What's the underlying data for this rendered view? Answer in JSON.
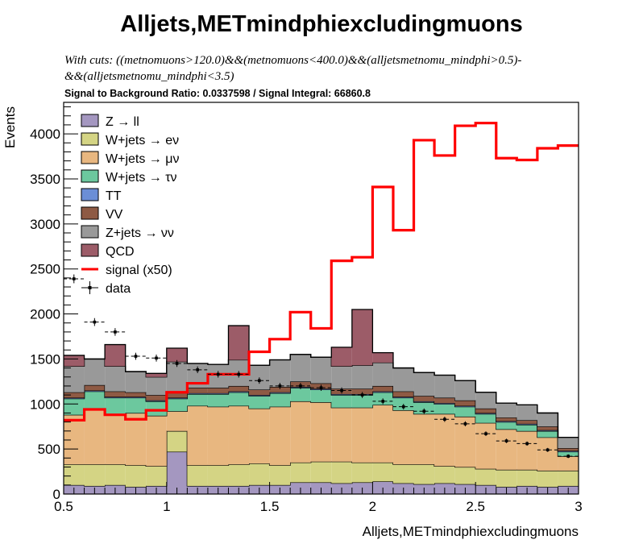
{
  "chart_data": {
    "type": "bar",
    "title": "Alljets,METmindphiexcludingmuons",
    "cuts_line1": "With cuts: ((metnomuons>120.0)&&(metnomuons<400.0)&&(alljetsmetnomu_mindphi>0.5)-",
    "cuts_line2": "&&(alljetsmetnomu_mindphi<3.5)",
    "ratio_text": "Signal to Background Ratio: 0.0337598 / Signal Integral: 66860.8",
    "xlabel": "Alljets,METmindphiexcludingmuons",
    "ylabel": "Events",
    "xlim": [
      0.5,
      3.0
    ],
    "ylim": [
      0,
      4350
    ],
    "x_ticks": [
      0.5,
      1,
      1.5,
      2,
      2.5,
      3
    ],
    "x_tick_labels": [
      "0.5",
      "1",
      "1.5",
      "2",
      "2.5",
      "3"
    ],
    "y_ticks": [
      0,
      500,
      1000,
      1500,
      2000,
      2500,
      3000,
      3500,
      4000
    ],
    "y_tick_labels": [
      "0",
      "500",
      "1000",
      "1500",
      "2000",
      "2500",
      "3000",
      "3500",
      "4000"
    ],
    "bin_edges": [
      0.5,
      0.6,
      0.7,
      0.8,
      0.9,
      1.0,
      1.1,
      1.2,
      1.3,
      1.4,
      1.5,
      1.6,
      1.7,
      1.8,
      1.9,
      2.0,
      2.1,
      2.2,
      2.3,
      2.4,
      2.5,
      2.6,
      2.7,
      2.8,
      2.9,
      3.0
    ],
    "stack": [
      {
        "name": "Z → ll",
        "color": "#a497c0",
        "values": [
          100,
          90,
          100,
          80,
          90,
          470,
          90,
          90,
          90,
          100,
          100,
          130,
          130,
          120,
          130,
          140,
          120,
          110,
          120,
          110,
          100,
          80,
          90,
          80,
          90
        ]
      },
      {
        "name": "W+jets → eν",
        "color": "#d4d484",
        "values": [
          230,
          240,
          230,
          240,
          220,
          230,
          230,
          230,
          240,
          240,
          220,
          220,
          230,
          240,
          220,
          210,
          210,
          220,
          190,
          190,
          180,
          190,
          180,
          180,
          170
        ]
      },
      {
        "name": "W+jets → μν",
        "color": "#e8b780",
        "values": [
          550,
          620,
          560,
          580,
          560,
          220,
          660,
          650,
          650,
          610,
          650,
          680,
          660,
          600,
          610,
          640,
          600,
          560,
          580,
          560,
          510,
          450,
          430,
          370,
          160
        ]
      },
      {
        "name": "W+jets → τν",
        "color": "#6cc89e",
        "values": [
          180,
          190,
          180,
          170,
          160,
          140,
          130,
          140,
          150,
          140,
          150,
          150,
          140,
          140,
          140,
          140,
          140,
          130,
          110,
          110,
          100,
          80,
          70,
          70,
          50
        ]
      },
      {
        "name": "TT",
        "color": "#6b8ed6",
        "values": [
          10,
          10,
          10,
          10,
          10,
          10,
          10,
          10,
          10,
          10,
          10,
          10,
          10,
          10,
          10,
          10,
          10,
          10,
          10,
          10,
          10,
          10,
          10,
          10,
          10
        ]
      },
      {
        "name": "VV",
        "color": "#8e5a44",
        "values": [
          60,
          60,
          60,
          50,
          60,
          60,
          60,
          60,
          60,
          60,
          60,
          60,
          60,
          60,
          60,
          60,
          60,
          60,
          60,
          60,
          50,
          40,
          40,
          40,
          30
        ]
      },
      {
        "name": "Z+jets → νν",
        "color": "#999999",
        "values": [
          290,
          290,
          280,
          230,
          200,
          340,
          270,
          260,
          290,
          270,
          300,
          300,
          290,
          250,
          260,
          260,
          260,
          260,
          250,
          220,
          180,
          160,
          170,
          150,
          120
        ]
      },
      {
        "name": "QCD",
        "color": "#9c5c68",
        "values": [
          120,
          0,
          240,
          0,
          40,
          150,
          0,
          0,
          380,
          0,
          0,
          0,
          0,
          210,
          620,
          110,
          0,
          0,
          0,
          0,
          0,
          0,
          0,
          0,
          0
        ]
      }
    ],
    "signal": {
      "name": "signal (x50)",
      "color": "#ff0000",
      "values": [
        820,
        940,
        880,
        830,
        930,
        1130,
        1230,
        1330,
        1330,
        1580,
        1720,
        2020,
        1840,
        2590,
        2630,
        3410,
        2930,
        3930,
        3760,
        4090,
        4120,
        3730,
        3710,
        3840,
        3870
      ]
    },
    "data": {
      "name": "data",
      "x": [
        0.55,
        0.65,
        0.75,
        0.85,
        0.95,
        1.05,
        1.15,
        1.25,
        1.35,
        1.45,
        1.55,
        1.65,
        1.75,
        1.85,
        1.95,
        2.05,
        2.15,
        2.25,
        2.35,
        2.45,
        2.55,
        2.65,
        2.75,
        2.85,
        2.95
      ],
      "y": [
        2390,
        1910,
        1800,
        1530,
        1510,
        1450,
        1380,
        1330,
        1330,
        1260,
        1200,
        1200,
        1180,
        1150,
        1100,
        1030,
        970,
        920,
        830,
        780,
        670,
        590,
        560,
        490,
        420
      ]
    },
    "legend_position": "top-left"
  }
}
